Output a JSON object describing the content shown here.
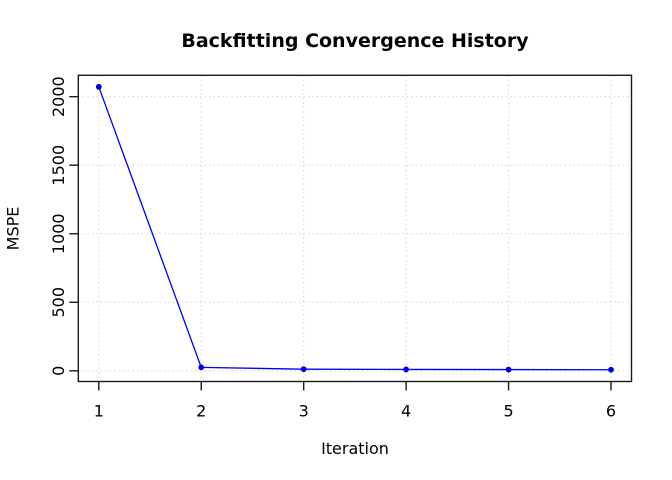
{
  "chart_data": {
    "type": "line",
    "title": "Backfitting Convergence History",
    "xlabel": "Iteration",
    "ylabel": "MSPE",
    "x": [
      1,
      2,
      3,
      4,
      5,
      6
    ],
    "series": [
      {
        "name": "MSPE",
        "values": [
          2072,
          25,
          12,
          10,
          9,
          8
        ]
      }
    ],
    "x_ticks": [
      1,
      2,
      3,
      4,
      5,
      6
    ],
    "y_ticks": [
      0,
      500,
      1000,
      1500,
      2000
    ],
    "xlim": [
      0.8,
      6.2
    ],
    "ylim": [
      -78,
      2156
    ],
    "grid": "dotted-both",
    "legend": "none",
    "marker": "filled-circle",
    "colors": {
      "line": "#0000ff",
      "marker": "#0000e6",
      "grid": "#d3d3d3",
      "frame": "#1a1a1a",
      "text": "#000000",
      "background": "#ffffff"
    }
  }
}
